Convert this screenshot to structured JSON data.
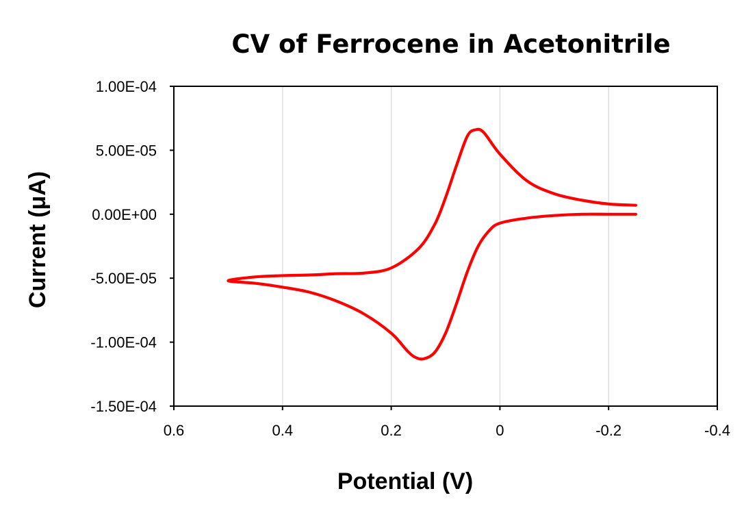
{
  "chart_data": {
    "type": "scatter",
    "title": "CV of Ferrocene in Acetonitrile",
    "xlabel": "Potential (V)",
    "ylabel": "Current (μA)",
    "xlim": [
      0.6,
      -0.4
    ],
    "ylim": [
      -0.00015,
      0.0001
    ],
    "x_reversed": true,
    "x_ticks": [
      0.6,
      0.4,
      0.2,
      0,
      -0.2,
      -0.4
    ],
    "x_tick_labels": [
      "0.6",
      "0.4",
      "0.2",
      "0",
      "-0.2",
      "-0.4"
    ],
    "y_ticks": [
      0.0001,
      5e-05,
      0,
      -5e-05,
      -0.0001,
      -0.00015
    ],
    "y_tick_labels": [
      "1.00E-04",
      "5.00E-05",
      "0.00E+00",
      "-5.00E-05",
      "-1.00E-04",
      "-1.50E-04"
    ],
    "grid": "vertical",
    "legend": "none",
    "series_color": "#ff0000",
    "series": [
      {
        "x": [
          -0.25,
          -0.2,
          -0.15,
          -0.1,
          -0.05,
          0.0,
          0.02,
          0.04,
          0.06,
          0.08,
          0.1,
          0.12,
          0.14,
          0.155,
          0.17,
          0.2,
          0.25,
          0.3,
          0.35,
          0.4,
          0.45,
          0.5,
          0.45,
          0.4,
          0.35,
          0.3,
          0.25,
          0.2,
          0.15,
          0.12,
          0.1,
          0.08,
          0.06,
          0.045,
          0.03,
          0.0,
          -0.05,
          -0.1,
          -0.15,
          -0.2,
          -0.25
        ],
        "y": [
          0.0,
          0.0,
          0.0,
          -1e-06,
          -3e-06,
          -7e-06,
          -1.3e-05,
          -2.5e-05,
          -4.5e-05,
          -7e-05,
          -9.3e-05,
          -0.000108,
          -0.000113,
          -0.000112,
          -0.000107,
          -9.3e-05,
          -7.8e-05,
          -6.8e-05,
          -6.1e-05,
          -5.7e-05,
          -5.4e-05,
          -5.2e-05,
          -4.9e-05,
          -4.8e-05,
          -4.75e-05,
          -4.65e-05,
          -4.6e-05,
          -4.2e-05,
          -2.7e-05,
          -8e-06,
          1.3e-05,
          3.8e-05,
          6.1e-05,
          6.6e-05,
          6.4e-05,
          4.7e-05,
          2.6e-05,
          1.6e-05,
          1.1e-05,
          8e-06,
          7e-06
        ]
      }
    ]
  }
}
